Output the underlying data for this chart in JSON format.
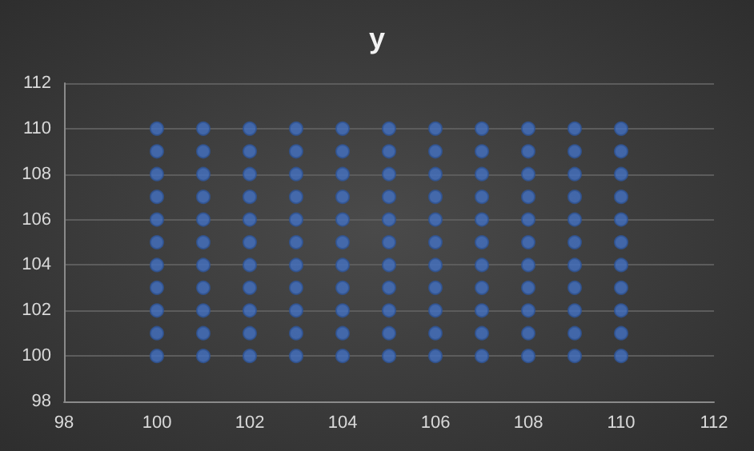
{
  "chart_data": {
    "type": "scatter",
    "title": "y",
    "x": [
      100,
      100,
      100,
      100,
      100,
      100,
      100,
      100,
      100,
      100,
      100,
      101,
      101,
      101,
      101,
      101,
      101,
      101,
      101,
      101,
      101,
      101,
      102,
      102,
      102,
      102,
      102,
      102,
      102,
      102,
      102,
      102,
      102,
      103,
      103,
      103,
      103,
      103,
      103,
      103,
      103,
      103,
      103,
      103,
      104,
      104,
      104,
      104,
      104,
      104,
      104,
      104,
      104,
      104,
      104,
      105,
      105,
      105,
      105,
      105,
      105,
      105,
      105,
      105,
      105,
      105,
      106,
      106,
      106,
      106,
      106,
      106,
      106,
      106,
      106,
      106,
      106,
      107,
      107,
      107,
      107,
      107,
      107,
      107,
      107,
      107,
      107,
      107,
      108,
      108,
      108,
      108,
      108,
      108,
      108,
      108,
      108,
      108,
      108,
      109,
      109,
      109,
      109,
      109,
      109,
      109,
      109,
      109,
      109,
      109,
      110,
      110,
      110,
      110,
      110,
      110,
      110,
      110,
      110,
      110,
      110
    ],
    "series": [
      {
        "color": "#4472c4",
        "values": [
          100,
          101,
          102,
          103,
          104,
          105,
          106,
          107,
          108,
          109,
          110,
          100,
          101,
          102,
          103,
          104,
          105,
          106,
          107,
          108,
          109,
          110,
          100,
          101,
          102,
          103,
          104,
          105,
          106,
          107,
          108,
          109,
          110,
          100,
          101,
          102,
          103,
          104,
          105,
          106,
          107,
          108,
          109,
          110,
          100,
          101,
          102,
          103,
          104,
          105,
          106,
          107,
          108,
          109,
          110,
          100,
          101,
          102,
          103,
          104,
          105,
          106,
          107,
          108,
          109,
          110,
          100,
          101,
          102,
          103,
          104,
          105,
          106,
          107,
          108,
          109,
          110,
          100,
          101,
          102,
          103,
          104,
          105,
          106,
          107,
          108,
          109,
          110,
          100,
          101,
          102,
          103,
          104,
          105,
          106,
          107,
          108,
          109,
          110,
          100,
          101,
          102,
          103,
          104,
          105,
          106,
          107,
          108,
          109,
          110,
          100,
          101,
          102,
          103,
          104,
          105,
          106,
          107,
          108,
          109,
          110
        ]
      }
    ],
    "xlim": [
      98,
      112
    ],
    "xticks": [
      98,
      100,
      102,
      104,
      106,
      108,
      110,
      112
    ],
    "ylim": [
      98,
      112
    ],
    "yticks": [
      98,
      100,
      102,
      104,
      106,
      108,
      110,
      112
    ],
    "grid": "y",
    "marker": "circle"
  }
}
